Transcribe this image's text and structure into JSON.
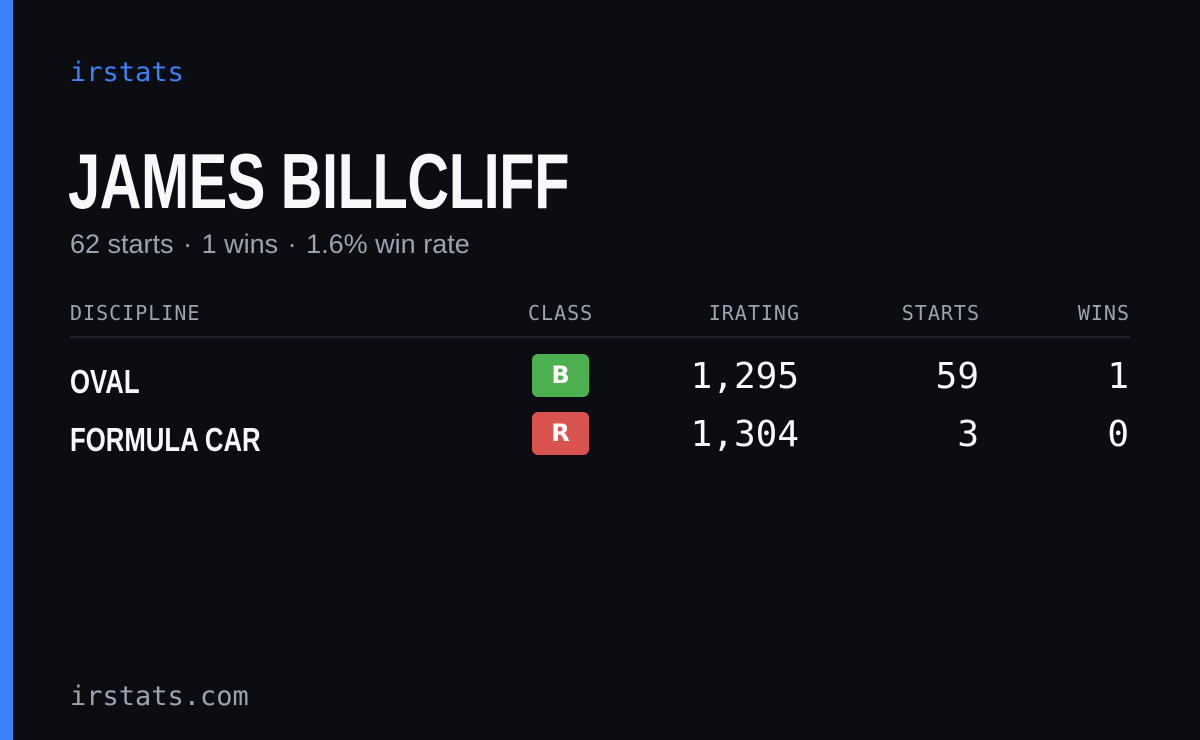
{
  "brand": "irstats",
  "driver": {
    "name": "JAMES BILLCLIFF",
    "starts_text": "62 starts",
    "wins_text": "1 wins",
    "win_rate_text": "1.6% win rate",
    "separator": "·"
  },
  "table": {
    "headers": {
      "discipline": "DISCIPLINE",
      "class": "CLASS",
      "irating": "IRATING",
      "starts": "STARTS",
      "wins": "WINS"
    },
    "rows": [
      {
        "discipline": "OVAL",
        "class": "B",
        "class_color": "#4caf50",
        "irating": "1,295",
        "starts": "59",
        "wins": "1"
      },
      {
        "discipline": "FORMULA CAR",
        "class": "R",
        "class_color": "#d9534f",
        "irating": "1,304",
        "starts": "3",
        "wins": "0"
      }
    ]
  },
  "footer": "irstats.com",
  "colors": {
    "background": "#0b0d13",
    "accent": "#3b82f6",
    "muted_text": "#9ca3af",
    "primary_text": "#f7f8fa"
  }
}
